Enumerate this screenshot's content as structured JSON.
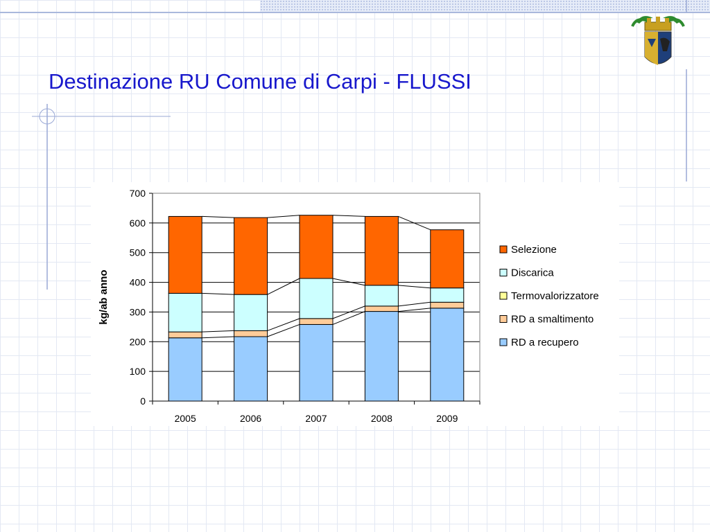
{
  "slide": {
    "title": "Destinazione RU Comune di Carpi - FLUSSI"
  },
  "icons": {
    "logo": "province-coat-of-arms-icon"
  },
  "chart_data": {
    "type": "bar",
    "stacked": true,
    "categories": [
      "2005",
      "2006",
      "2007",
      "2008",
      "2009"
    ],
    "series": [
      {
        "name": "RD a recupero",
        "color": "#99ccff",
        "values": [
          213,
          217,
          258,
          302,
          313
        ]
      },
      {
        "name": "RD a smaltimento",
        "color": "#ffcc99",
        "values": [
          20,
          20,
          20,
          18,
          20
        ]
      },
      {
        "name": "Termovalorizzatore",
        "color": "#ffff99",
        "values": [
          0,
          0,
          0,
          0,
          0
        ]
      },
      {
        "name": "Discarica",
        "color": "#ccffff",
        "values": [
          130,
          122,
          135,
          70,
          48
        ]
      },
      {
        "name": "Selezione",
        "color": "#ff6600",
        "values": [
          259,
          259,
          213,
          232,
          196
        ]
      }
    ],
    "ylabel": "kg/ab anno",
    "xlabel": "",
    "ylim": [
      0,
      700
    ],
    "yticks": [
      0,
      100,
      200,
      300,
      400,
      500,
      600,
      700
    ],
    "grid": true,
    "legend": "right",
    "connector_lines": true
  }
}
